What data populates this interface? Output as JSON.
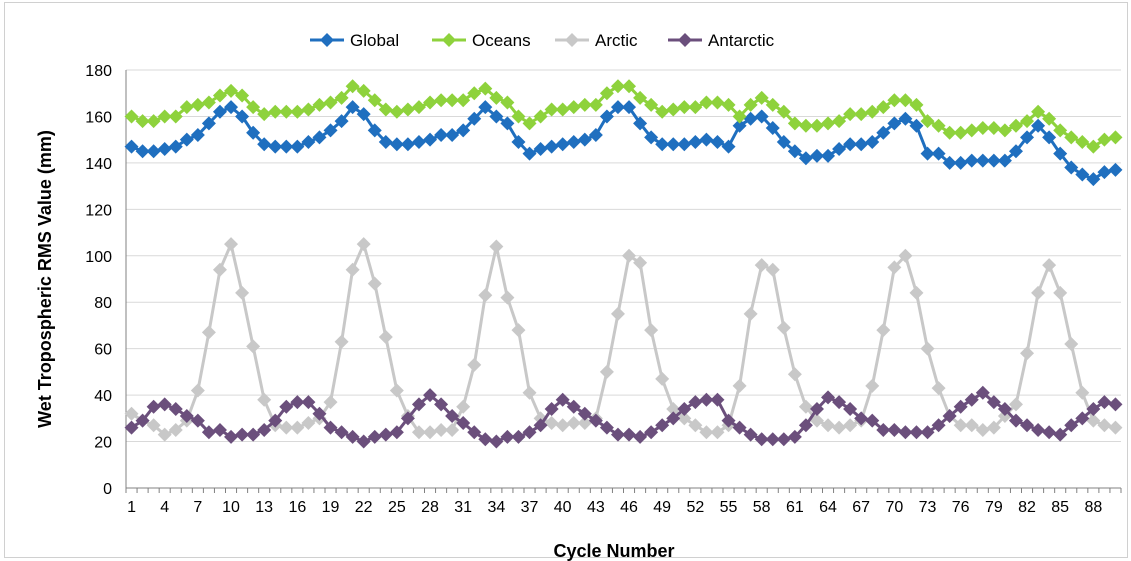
{
  "chart_data": {
    "type": "line",
    "xlabel": "Cycle Number",
    "ylabel": "Wet Tropospheric RMS Value (mm)",
    "ylim": [
      0,
      180
    ],
    "y_ticks": [
      0,
      20,
      40,
      60,
      80,
      100,
      120,
      140,
      160,
      180
    ],
    "x_tick_labels": [
      "1",
      "4",
      "7",
      "10",
      "13",
      "16",
      "19",
      "22",
      "25",
      "28",
      "31",
      "34",
      "37",
      "40",
      "43",
      "46",
      "49",
      "52",
      "55",
      "58",
      "61",
      "64",
      "67",
      "70",
      "73",
      "76",
      "79",
      "82",
      "85",
      "88"
    ],
    "legend_position": "top",
    "grid": "horizontal",
    "series": [
      {
        "name": "Global",
        "color": "#1f6fbf",
        "values": [
          147,
          145,
          145,
          146,
          147,
          150,
          152,
          157,
          162,
          164,
          160,
          153,
          148,
          147,
          147,
          147,
          149,
          151,
          154,
          158,
          164,
          161,
          154,
          149,
          148,
          148,
          149,
          150,
          152,
          152,
          154,
          159,
          164,
          160,
          157,
          149,
          144,
          146,
          147,
          148,
          149,
          150,
          152,
          160,
          164,
          164,
          157,
          151,
          148,
          148,
          148,
          149,
          150,
          149,
          147,
          156,
          159,
          160,
          155,
          149,
          145,
          142,
          143,
          143,
          146,
          148,
          148,
          149,
          153,
          157,
          159,
          156,
          144,
          144,
          140,
          140,
          141,
          141,
          141,
          141,
          145,
          151,
          156,
          151,
          144,
          138,
          135,
          133,
          136,
          137
        ]
      },
      {
        "name": "Oceans",
        "color": "#8ed23c",
        "values": [
          160,
          158,
          158,
          160,
          160,
          164,
          165,
          166,
          169,
          171,
          169,
          164,
          161,
          162,
          162,
          162,
          163,
          165,
          166,
          168,
          173,
          171,
          167,
          163,
          162,
          163,
          164,
          166,
          167,
          167,
          167,
          170,
          172,
          168,
          166,
          160,
          157,
          160,
          163,
          163,
          164,
          165,
          165,
          170,
          173,
          173,
          168,
          165,
          162,
          163,
          164,
          164,
          166,
          166,
          165,
          160,
          165,
          168,
          165,
          162,
          157,
          156,
          156,
          157,
          158,
          161,
          161,
          162,
          164,
          167,
          167,
          165,
          158,
          156,
          153,
          153,
          154,
          155,
          155,
          154,
          156,
          158,
          162,
          159,
          154,
          151,
          149,
          147,
          150,
          151
        ]
      },
      {
        "name": "Arctic",
        "color": "#c8c8c8",
        "values": [
          32,
          29,
          27,
          23,
          25,
          29,
          42,
          67,
          94,
          105,
          84,
          61,
          38,
          27,
          26,
          26,
          28,
          30,
          37,
          63,
          94,
          105,
          88,
          65,
          42,
          31,
          24,
          24,
          25,
          25,
          35,
          53,
          83,
          104,
          82,
          68,
          41,
          30,
          28,
          27,
          28,
          28,
          30,
          50,
          75,
          100,
          97,
          68,
          47,
          34,
          30,
          27,
          24,
          24,
          27,
          44,
          75,
          96,
          94,
          69,
          49,
          35,
          29,
          27,
          26,
          27,
          29,
          44,
          68,
          95,
          100,
          84,
          60,
          43,
          31,
          27,
          27,
          25,
          26,
          31,
          36,
          58,
          84,
          96,
          84,
          62,
          41,
          29,
          27,
          26
        ]
      },
      {
        "name": "Antarctic",
        "color": "#6b4f7c",
        "values": [
          26,
          29,
          35,
          36,
          34,
          31,
          29,
          24,
          25,
          22,
          23,
          23,
          25,
          29,
          35,
          37,
          37,
          32,
          26,
          24,
          22,
          20,
          22,
          23,
          24,
          30,
          36,
          40,
          36,
          31,
          28,
          24,
          21,
          20,
          22,
          22,
          24,
          27,
          34,
          38,
          35,
          32,
          29,
          26,
          23,
          23,
          22,
          24,
          27,
          30,
          34,
          37,
          38,
          38,
          29,
          26,
          23,
          21,
          21,
          21,
          22,
          27,
          34,
          39,
          37,
          34,
          30,
          29,
          25,
          25,
          24,
          24,
          24,
          27,
          31,
          35,
          38,
          41,
          37,
          34,
          29,
          27,
          25,
          24,
          23,
          27,
          30,
          34,
          37,
          36
        ]
      }
    ]
  }
}
